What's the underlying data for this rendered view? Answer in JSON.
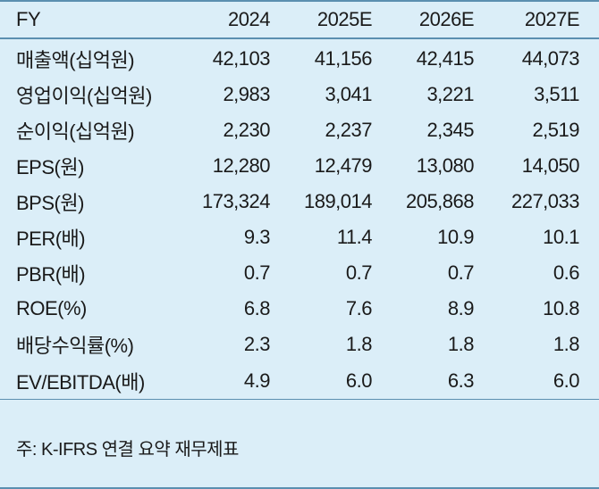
{
  "table": {
    "header": {
      "label": "FY",
      "years": [
        "2024",
        "2025E",
        "2026E",
        "2027E"
      ]
    },
    "rows": [
      {
        "label": "매출액(십억원)",
        "values": [
          "42,103",
          "41,156",
          "42,415",
          "44,073"
        ]
      },
      {
        "label": "영업이익(십억원)",
        "values": [
          "2,983",
          "3,041",
          "3,221",
          "3,511"
        ]
      },
      {
        "label": "순이익(십억원)",
        "values": [
          "2,230",
          "2,237",
          "2,345",
          "2,519"
        ]
      },
      {
        "label": "EPS(원)",
        "values": [
          "12,280",
          "12,479",
          "13,080",
          "14,050"
        ]
      },
      {
        "label": "BPS(원)",
        "values": [
          "173,324",
          "189,014",
          "205,868",
          "227,033"
        ]
      },
      {
        "label": "PER(배)",
        "values": [
          "9.3",
          "11.4",
          "10.9",
          "10.1"
        ]
      },
      {
        "label": "PBR(배)",
        "values": [
          "0.7",
          "0.7",
          "0.7",
          "0.6"
        ]
      },
      {
        "label": "ROE(%)",
        "values": [
          "6.8",
          "7.6",
          "8.9",
          "10.8"
        ]
      },
      {
        "label": "배당수익률(%)",
        "values": [
          "2.3",
          "1.8",
          "1.8",
          "1.8"
        ]
      },
      {
        "label": "EV/EBITDA(배)",
        "values": [
          "4.9",
          "6.0",
          "6.3",
          "6.0"
        ]
      }
    ]
  },
  "footnote": "주: K-IFRS 연결 요약 재무제표",
  "colors": {
    "background": "#dbeef8",
    "rule": "#5b8fb0",
    "text": "#1a1a1a"
  }
}
